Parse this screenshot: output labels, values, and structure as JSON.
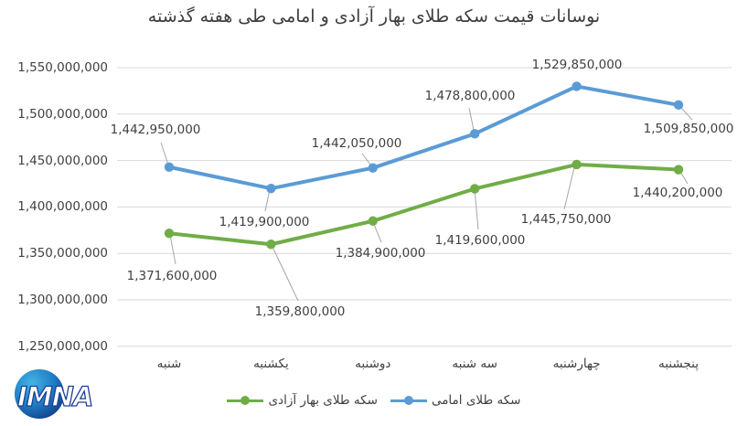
{
  "title": "نوسانات قیمت سکه طلای بهار آزادی و امامی طی هفته گذشته",
  "chart_data": {
    "type": "line",
    "categories": [
      "شنبه",
      "یکشنبه",
      "دوشنبه",
      "سه شنبه",
      "چهارشنبه",
      "پنجشنبه"
    ],
    "series": [
      {
        "name": "سکه طلای بهار آزادی",
        "color": "#70AD47",
        "values": [
          1371600000,
          1359800000,
          1384900000,
          1419600000,
          1445750000,
          1440200000
        ]
      },
      {
        "name": "سکه طلای امامی",
        "color": "#5B9BD5",
        "values": [
          1442950000,
          1419900000,
          1442050000,
          1478800000,
          1529850000,
          1509850000
        ]
      }
    ],
    "ylim": [
      1250000000,
      1550000000
    ],
    "ytick_step": 50000000,
    "ytick_labels": [
      "1,550,000,000",
      "1,500,000,000",
      "1,450,000,000",
      "1,400,000,000",
      "1,350,000,000",
      "1,300,000,000",
      "1,250,000,000"
    ],
    "grid": true,
    "data_labels": true,
    "legend_position": "bottom"
  },
  "legend": {
    "items": [
      {
        "label": "سکه طلای بهار آزادی",
        "color": "#70AD47"
      },
      {
        "label": "سکه طلای امامی",
        "color": "#5B9BD5"
      }
    ]
  },
  "logo": {
    "text": "IMNA"
  },
  "colors": {
    "background": "#FFFFFF",
    "grid": "#D9D9D9",
    "leader": "#A6A6A6",
    "axis_text": "#404040"
  }
}
